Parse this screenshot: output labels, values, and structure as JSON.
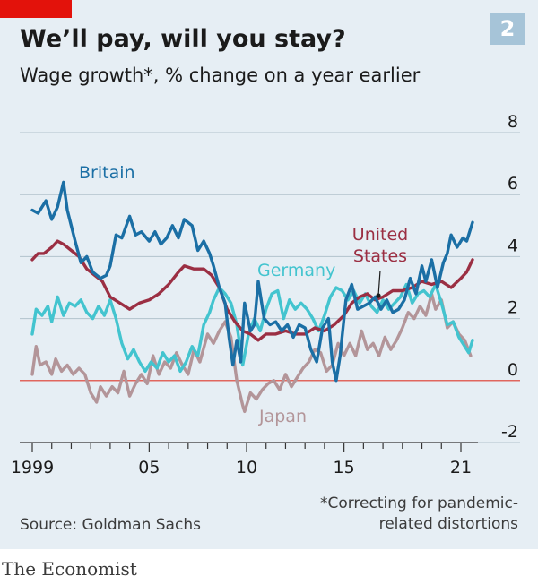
{
  "header": {
    "title": "We’ll pay, will you stay?",
    "subtitle": "Wage growth*, % change on a year earlier",
    "badge": "2"
  },
  "footer": {
    "source": "Source: Goldman Sachs",
    "footnote_line1": "*Correcting for pandemic-",
    "footnote_line2": "related distortions",
    "brand": "The Economist"
  },
  "colors": {
    "britain": "#1b6fa5",
    "united_states": "#9b2f43",
    "germany": "#43c4cf",
    "japan": "#b39599",
    "zero_line": "#e0665e"
  },
  "chart_data": {
    "type": "line",
    "title": "We’ll pay, will you stay?",
    "subtitle": "Wage growth*, % change on a year earlier",
    "xlabel": "",
    "ylabel": "",
    "xlim": [
      1999,
      2022
    ],
    "ylim": [
      -2,
      8
    ],
    "x_ticks": [
      1999,
      2005,
      2010,
      2015,
      2021
    ],
    "x_tick_labels": [
      "1999",
      "05",
      "10",
      "15",
      "21"
    ],
    "y_ticks": [
      -2,
      0,
      2,
      4,
      6,
      8
    ],
    "y_tick_labels": [
      "-2",
      "0",
      "2",
      "4",
      "6",
      "8"
    ],
    "grid": true,
    "series": [
      {
        "name": "Britain",
        "key": "britain",
        "points": [
          [
            1999.0,
            5.5
          ],
          [
            1999.3,
            5.4
          ],
          [
            1999.7,
            5.8
          ],
          [
            2000.0,
            5.2
          ],
          [
            2000.3,
            5.6
          ],
          [
            2000.6,
            6.4
          ],
          [
            2000.8,
            5.5
          ],
          [
            2001.2,
            4.5
          ],
          [
            2001.5,
            3.8
          ],
          [
            2001.8,
            4.0
          ],
          [
            2002.1,
            3.5
          ],
          [
            2002.5,
            3.3
          ],
          [
            2002.8,
            3.4
          ],
          [
            2003.0,
            3.7
          ],
          [
            2003.3,
            4.7
          ],
          [
            2003.6,
            4.6
          ],
          [
            2004.0,
            5.3
          ],
          [
            2004.3,
            4.7
          ],
          [
            2004.6,
            4.8
          ],
          [
            2005.0,
            4.5
          ],
          [
            2005.3,
            4.8
          ],
          [
            2005.6,
            4.4
          ],
          [
            2005.9,
            4.6
          ],
          [
            2006.2,
            5.0
          ],
          [
            2006.5,
            4.6
          ],
          [
            2006.8,
            5.2
          ],
          [
            2007.2,
            5.0
          ],
          [
            2007.5,
            4.2
          ],
          [
            2007.8,
            4.5
          ],
          [
            2008.1,
            4.1
          ],
          [
            2008.3,
            3.7
          ],
          [
            2008.6,
            3.0
          ],
          [
            2008.9,
            2.5
          ],
          [
            2009.1,
            1.4
          ],
          [
            2009.3,
            0.5
          ],
          [
            2009.5,
            1.3
          ],
          [
            2009.7,
            0.6
          ],
          [
            2009.9,
            2.5
          ],
          [
            2010.2,
            1.6
          ],
          [
            2010.4,
            1.8
          ],
          [
            2010.6,
            3.2
          ],
          [
            2010.9,
            2.0
          ],
          [
            2011.2,
            1.8
          ],
          [
            2011.5,
            1.9
          ],
          [
            2011.8,
            1.6
          ],
          [
            2012.1,
            1.8
          ],
          [
            2012.4,
            1.4
          ],
          [
            2012.7,
            1.8
          ],
          [
            2013.0,
            1.7
          ],
          [
            2013.3,
            1.0
          ],
          [
            2013.6,
            0.6
          ],
          [
            2013.9,
            1.7
          ],
          [
            2014.2,
            2.0
          ],
          [
            2014.4,
            0.6
          ],
          [
            2014.6,
            0.0
          ],
          [
            2014.8,
            0.8
          ],
          [
            2015.1,
            2.6
          ],
          [
            2015.4,
            3.1
          ],
          [
            2015.7,
            2.3
          ],
          [
            2016.0,
            2.4
          ],
          [
            2016.3,
            2.5
          ],
          [
            2016.6,
            2.7
          ],
          [
            2016.9,
            2.3
          ],
          [
            2017.2,
            2.6
          ],
          [
            2017.5,
            2.2
          ],
          [
            2017.8,
            2.3
          ],
          [
            2018.1,
            2.6
          ],
          [
            2018.4,
            3.3
          ],
          [
            2018.7,
            2.8
          ],
          [
            2019.0,
            3.7
          ],
          [
            2019.2,
            3.2
          ],
          [
            2019.5,
            3.9
          ],
          [
            2019.8,
            3.0
          ],
          [
            2020.1,
            3.8
          ],
          [
            2020.3,
            4.1
          ],
          [
            2020.5,
            4.7
          ],
          [
            2020.8,
            4.3
          ],
          [
            2021.1,
            4.6
          ],
          [
            2021.3,
            4.5
          ],
          [
            2021.6,
            5.1
          ]
        ]
      },
      {
        "name": "United States",
        "key": "united_states",
        "points": [
          [
            1999.0,
            3.9
          ],
          [
            1999.3,
            4.1
          ],
          [
            1999.6,
            4.1
          ],
          [
            2000.0,
            4.3
          ],
          [
            2000.3,
            4.5
          ],
          [
            2000.6,
            4.4
          ],
          [
            2001.0,
            4.2
          ],
          [
            2001.4,
            4.0
          ],
          [
            2001.8,
            3.6
          ],
          [
            2002.2,
            3.4
          ],
          [
            2002.6,
            3.2
          ],
          [
            2003.0,
            2.7
          ],
          [
            2003.5,
            2.5
          ],
          [
            2004.0,
            2.3
          ],
          [
            2004.5,
            2.5
          ],
          [
            2005.0,
            2.6
          ],
          [
            2005.5,
            2.8
          ],
          [
            2006.0,
            3.1
          ],
          [
            2006.5,
            3.5
          ],
          [
            2006.8,
            3.7
          ],
          [
            2007.3,
            3.6
          ],
          [
            2007.8,
            3.6
          ],
          [
            2008.2,
            3.4
          ],
          [
            2008.6,
            3.0
          ],
          [
            2009.0,
            2.3
          ],
          [
            2009.4,
            1.9
          ],
          [
            2009.8,
            1.6
          ],
          [
            2010.2,
            1.5
          ],
          [
            2010.6,
            1.3
          ],
          [
            2011.0,
            1.5
          ],
          [
            2011.5,
            1.5
          ],
          [
            2012.0,
            1.6
          ],
          [
            2012.5,
            1.5
          ],
          [
            2013.0,
            1.5
          ],
          [
            2013.5,
            1.7
          ],
          [
            2014.0,
            1.6
          ],
          [
            2014.5,
            1.8
          ],
          [
            2015.0,
            2.1
          ],
          [
            2015.4,
            2.5
          ],
          [
            2015.8,
            2.7
          ],
          [
            2016.2,
            2.8
          ],
          [
            2016.6,
            2.6
          ],
          [
            2017.0,
            2.7
          ],
          [
            2017.5,
            2.9
          ],
          [
            2018.0,
            2.9
          ],
          [
            2018.5,
            3.0
          ],
          [
            2019.0,
            3.2
          ],
          [
            2019.5,
            3.1
          ],
          [
            2020.0,
            3.2
          ],
          [
            2020.5,
            3.0
          ],
          [
            2021.0,
            3.3
          ],
          [
            2021.3,
            3.5
          ],
          [
            2021.6,
            3.9
          ]
        ]
      },
      {
        "name": "Germany",
        "key": "germany",
        "points": [
          [
            1999.0,
            1.5
          ],
          [
            1999.2,
            2.3
          ],
          [
            1999.5,
            2.1
          ],
          [
            1999.8,
            2.4
          ],
          [
            2000.0,
            1.9
          ],
          [
            2000.3,
            2.7
          ],
          [
            2000.6,
            2.1
          ],
          [
            2000.9,
            2.5
          ],
          [
            2001.2,
            2.4
          ],
          [
            2001.5,
            2.6
          ],
          [
            2001.8,
            2.2
          ],
          [
            2002.1,
            2.0
          ],
          [
            2002.4,
            2.4
          ],
          [
            2002.7,
            2.1
          ],
          [
            2003.0,
            2.6
          ],
          [
            2003.3,
            2.0
          ],
          [
            2003.6,
            1.2
          ],
          [
            2003.9,
            0.7
          ],
          [
            2004.2,
            1.0
          ],
          [
            2004.5,
            0.6
          ],
          [
            2004.8,
            0.3
          ],
          [
            2005.1,
            0.6
          ],
          [
            2005.4,
            0.4
          ],
          [
            2005.7,
            0.9
          ],
          [
            2006.0,
            0.6
          ],
          [
            2006.3,
            0.8
          ],
          [
            2006.6,
            0.3
          ],
          [
            2006.9,
            0.6
          ],
          [
            2007.2,
            1.1
          ],
          [
            2007.5,
            0.8
          ],
          [
            2007.8,
            1.8
          ],
          [
            2008.1,
            2.2
          ],
          [
            2008.3,
            2.6
          ],
          [
            2008.6,
            3.0
          ],
          [
            2008.9,
            2.8
          ],
          [
            2009.2,
            2.5
          ],
          [
            2009.5,
            1.8
          ],
          [
            2009.8,
            0.5
          ],
          [
            2010.1,
            1.5
          ],
          [
            2010.4,
            2.0
          ],
          [
            2010.7,
            1.6
          ],
          [
            2011.0,
            2.3
          ],
          [
            2011.3,
            2.8
          ],
          [
            2011.6,
            2.9
          ],
          [
            2011.9,
            2.0
          ],
          [
            2012.2,
            2.6
          ],
          [
            2012.5,
            2.3
          ],
          [
            2012.8,
            2.5
          ],
          [
            2013.1,
            2.3
          ],
          [
            2013.4,
            2.0
          ],
          [
            2013.7,
            1.6
          ],
          [
            2014.0,
            2.1
          ],
          [
            2014.3,
            2.7
          ],
          [
            2014.6,
            3.0
          ],
          [
            2014.9,
            2.9
          ],
          [
            2015.2,
            2.6
          ],
          [
            2015.5,
            2.9
          ],
          [
            2015.8,
            2.5
          ],
          [
            2016.1,
            2.8
          ],
          [
            2016.4,
            2.4
          ],
          [
            2016.7,
            2.2
          ],
          [
            2017.0,
            2.6
          ],
          [
            2017.3,
            2.3
          ],
          [
            2017.6,
            2.5
          ],
          [
            2017.9,
            2.7
          ],
          [
            2018.2,
            3.1
          ],
          [
            2018.5,
            2.5
          ],
          [
            2018.8,
            2.8
          ],
          [
            2019.1,
            2.9
          ],
          [
            2019.4,
            2.7
          ],
          [
            2019.7,
            3.1
          ],
          [
            2020.0,
            2.5
          ],
          [
            2020.3,
            1.8
          ],
          [
            2020.6,
            1.9
          ],
          [
            2020.9,
            1.4
          ],
          [
            2021.2,
            1.1
          ],
          [
            2021.4,
            0.9
          ],
          [
            2021.6,
            1.3
          ]
        ]
      },
      {
        "name": "Japan",
        "key": "japan",
        "points": [
          [
            1999.0,
            0.2
          ],
          [
            1999.2,
            1.1
          ],
          [
            1999.4,
            0.5
          ],
          [
            1999.7,
            0.6
          ],
          [
            2000.0,
            0.2
          ],
          [
            2000.2,
            0.7
          ],
          [
            2000.5,
            0.3
          ],
          [
            2000.8,
            0.5
          ],
          [
            2001.1,
            0.2
          ],
          [
            2001.4,
            0.4
          ],
          [
            2001.7,
            0.2
          ],
          [
            2002.0,
            -0.4
          ],
          [
            2002.3,
            -0.7
          ],
          [
            2002.5,
            -0.2
          ],
          [
            2002.8,
            -0.5
          ],
          [
            2003.1,
            -0.2
          ],
          [
            2003.4,
            -0.4
          ],
          [
            2003.7,
            0.3
          ],
          [
            2004.0,
            -0.5
          ],
          [
            2004.3,
            -0.1
          ],
          [
            2004.6,
            0.2
          ],
          [
            2004.9,
            -0.1
          ],
          [
            2005.2,
            0.8
          ],
          [
            2005.5,
            0.2
          ],
          [
            2005.8,
            0.6
          ],
          [
            2006.1,
            0.4
          ],
          [
            2006.4,
            0.9
          ],
          [
            2006.7,
            0.5
          ],
          [
            2007.0,
            0.2
          ],
          [
            2007.3,
            1.0
          ],
          [
            2007.6,
            0.6
          ],
          [
            2008.0,
            1.5
          ],
          [
            2008.3,
            1.2
          ],
          [
            2008.6,
            1.6
          ],
          [
            2008.9,
            1.9
          ],
          [
            2009.2,
            1.4
          ],
          [
            2009.5,
            0.0
          ],
          [
            2009.8,
            -0.8
          ],
          [
            2009.9,
            -1.0
          ],
          [
            2010.2,
            -0.4
          ],
          [
            2010.5,
            -0.6
          ],
          [
            2010.8,
            -0.3
          ],
          [
            2011.1,
            -0.1
          ],
          [
            2011.4,
            0.0
          ],
          [
            2011.7,
            -0.3
          ],
          [
            2012.0,
            0.2
          ],
          [
            2012.3,
            -0.2
          ],
          [
            2012.6,
            0.1
          ],
          [
            2012.9,
            0.4
          ],
          [
            2013.2,
            0.6
          ],
          [
            2013.5,
            1.0
          ],
          [
            2013.8,
            0.9
          ],
          [
            2014.1,
            0.3
          ],
          [
            2014.4,
            0.5
          ],
          [
            2014.7,
            1.2
          ],
          [
            2015.0,
            0.8
          ],
          [
            2015.3,
            1.2
          ],
          [
            2015.6,
            0.8
          ],
          [
            2015.9,
            1.6
          ],
          [
            2016.2,
            1.0
          ],
          [
            2016.5,
            1.2
          ],
          [
            2016.8,
            0.8
          ],
          [
            2017.1,
            1.4
          ],
          [
            2017.4,
            1.0
          ],
          [
            2017.7,
            1.3
          ],
          [
            2018.0,
            1.7
          ],
          [
            2018.3,
            2.2
          ],
          [
            2018.6,
            2.0
          ],
          [
            2018.9,
            2.4
          ],
          [
            2019.2,
            2.1
          ],
          [
            2019.5,
            2.8
          ],
          [
            2019.7,
            2.3
          ],
          [
            2020.0,
            2.6
          ],
          [
            2020.3,
            1.7
          ],
          [
            2020.6,
            1.9
          ],
          [
            2020.9,
            1.5
          ],
          [
            2021.2,
            1.3
          ],
          [
            2021.5,
            0.8
          ]
        ]
      }
    ],
    "annotations": [
      {
        "series": "britain",
        "lines": [
          "Britain"
        ]
      },
      {
        "series": "united_states",
        "lines": [
          "United",
          "States"
        ]
      },
      {
        "series": "germany",
        "lines": [
          "Germany"
        ]
      },
      {
        "series": "japan",
        "lines": [
          "Japan"
        ]
      }
    ]
  }
}
